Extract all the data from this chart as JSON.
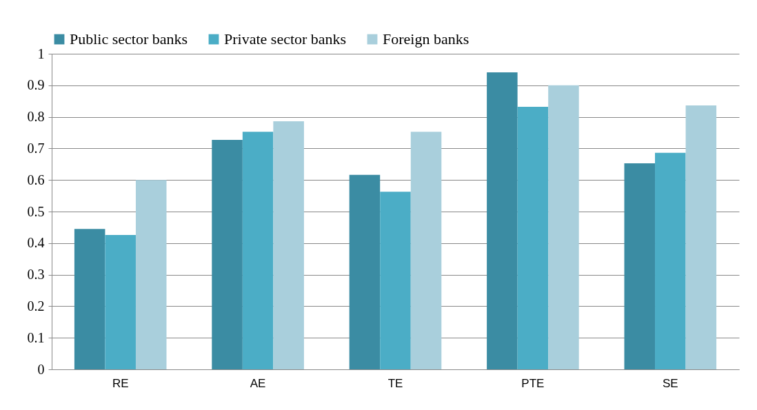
{
  "chart_data": {
    "type": "bar",
    "categories": [
      "RE",
      "AE",
      "TE",
      "PTE",
      "SE"
    ],
    "series": [
      {
        "name": "Public sector banks",
        "color": "#3b8ca3",
        "values": [
          0.445,
          0.727,
          0.616,
          0.941,
          0.653
        ]
      },
      {
        "name": "Private sector banks",
        "color": "#4badc6",
        "values": [
          0.426,
          0.753,
          0.563,
          0.832,
          0.686
        ]
      },
      {
        "name": "Foreign banks",
        "color": "#a9cfdc",
        "values": [
          0.6,
          0.786,
          0.753,
          0.9,
          0.836
        ]
      }
    ],
    "ylim": [
      0,
      1
    ],
    "yticks": [
      0,
      0.1,
      0.2,
      0.3,
      0.4,
      0.5,
      0.6,
      0.7,
      0.8,
      0.9,
      1
    ],
    "grid": "y",
    "legend": "top"
  }
}
